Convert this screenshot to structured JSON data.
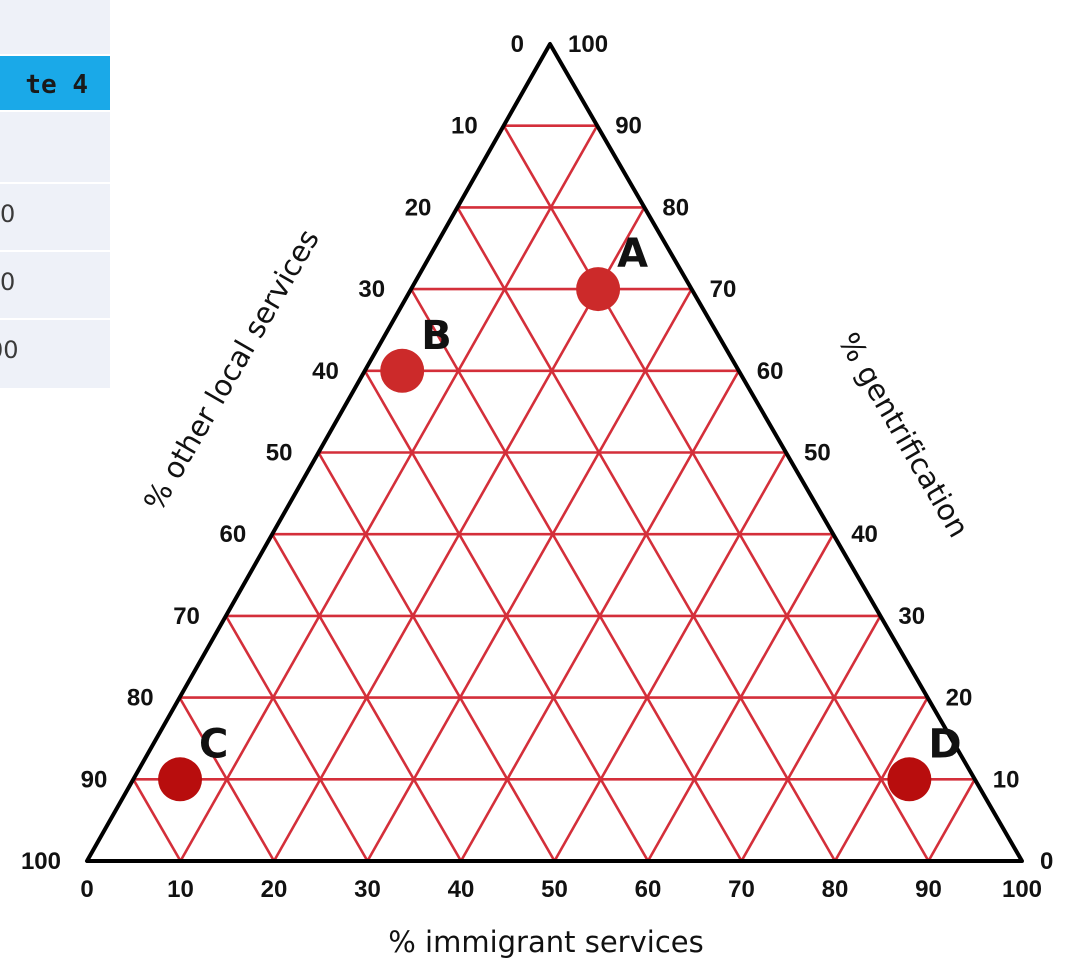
{
  "table": {
    "header": "te 4",
    "values": [
      "0",
      "0",
      "00"
    ]
  },
  "chart_data": {
    "type": "scatter",
    "subtype": "ternary",
    "axes": {
      "bottom": {
        "label": "% immigrant services",
        "ticks": [
          "0",
          "10",
          "20",
          "30",
          "40",
          "50",
          "60",
          "70",
          "80",
          "90",
          "100"
        ]
      },
      "left": {
        "label": "% other local services",
        "ticks": [
          "0",
          "10",
          "20",
          "30",
          "40",
          "50",
          "60",
          "70",
          "80",
          "90",
          "100"
        ]
      },
      "right": {
        "label": "% gentrification",
        "ticks": [
          "0",
          "10",
          "20",
          "30",
          "40",
          "50",
          "60",
          "70",
          "80",
          "90",
          "100"
        ]
      }
    },
    "grid": true,
    "grid_step": 10,
    "colors": {
      "grid": "#d42f3a",
      "frame": "#000000",
      "point": "#cc2a2a",
      "point_dark": "#b80d0d"
    },
    "points": [
      {
        "label": "A",
        "immigrant": 20,
        "other_local": 10,
        "gentrification": 70
      },
      {
        "label": "B",
        "immigrant": 4,
        "other_local": 36,
        "gentrification": 60
      },
      {
        "label": "C",
        "immigrant": 5,
        "other_local": 85,
        "gentrification": 10
      },
      {
        "label": "D",
        "immigrant": 83,
        "other_local": 7,
        "gentrification": 10
      }
    ]
  }
}
